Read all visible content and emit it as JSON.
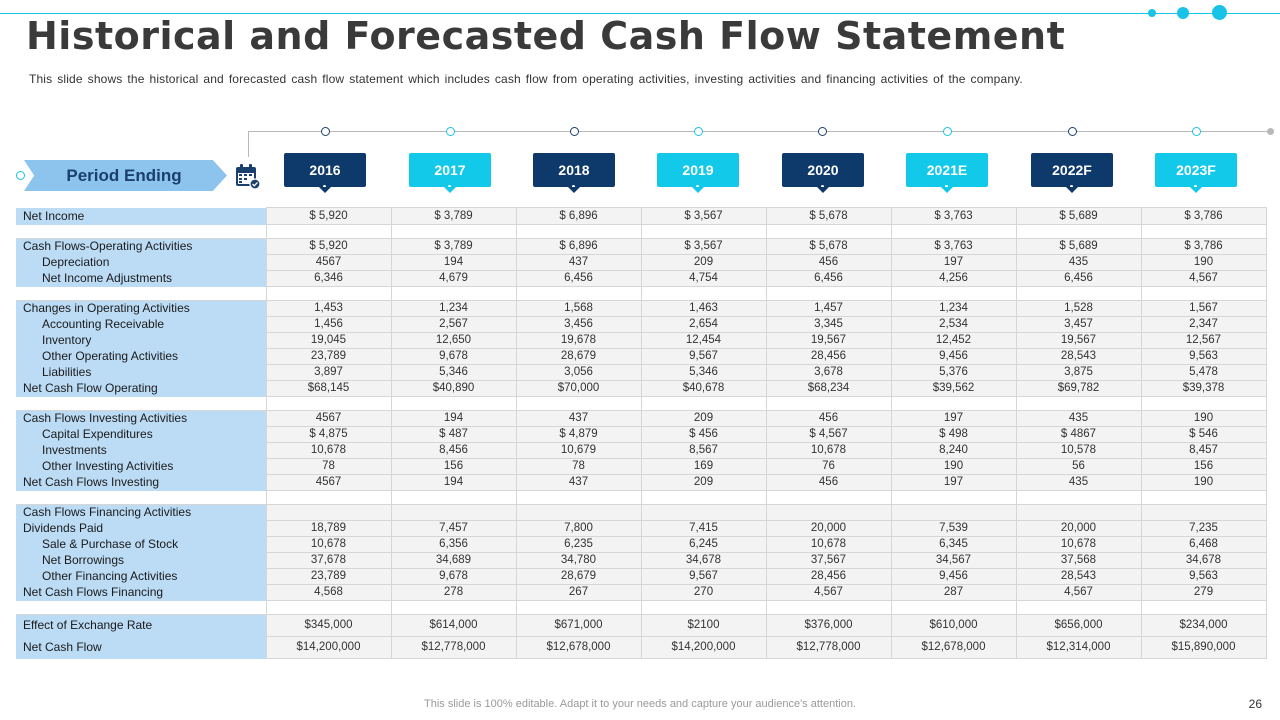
{
  "slide": {
    "title": "Historical and Forecasted Cash Flow Statement",
    "subtitle": "This slide shows the historical and forecasted cash flow statement which includes cash flow from operating activities, investing activities and financing activities of  the company.",
    "period_label": "Period Ending",
    "footer": "This slide is 100% editable. Adapt it to your needs and capture your audience's attention.",
    "page_number": "26"
  },
  "colors": {
    "dark": "#0e3a6b",
    "light": "#13c9ea",
    "label_bg": "#bcdcf6",
    "cell_bg": "#f3f3f3"
  },
  "years": [
    "2016",
    "2017",
    "2018",
    "2019",
    "2020",
    "2021E",
    "2022F",
    "2023F"
  ],
  "rows": [
    {
      "label": "Net Income",
      "values": [
        "$ 5,920",
        "$ 3,789",
        "$ 6,896",
        "$ 3,567",
        "$ 5,678",
        "$ 3,763",
        "$ 5,689",
        "$ 3,786"
      ]
    },
    {
      "label": "Cash Flows-Operating Activities",
      "values": [
        "$ 5,920",
        "$ 3,789",
        "$ 6,896",
        "$ 3,567",
        "$ 5,678",
        "$ 3,763",
        "$ 5,689",
        "$ 3,786"
      ]
    },
    {
      "label": "Depreciation",
      "values": [
        "4567",
        "194",
        "437",
        "209",
        "456",
        "197",
        "435",
        "190"
      ]
    },
    {
      "label": "Net Income Adjustments",
      "values": [
        "6,346",
        "4,679",
        "6,456",
        "4,754",
        "6,456",
        "4,256",
        "6,456",
        "4,567"
      ]
    },
    {
      "label": "Changes in Operating Activities",
      "values": [
        "1,453",
        "1,234",
        "1,568",
        "1,463",
        "1,457",
        "1,234",
        "1,528",
        "1,567"
      ]
    },
    {
      "label": "Accounting Receivable",
      "values": [
        "1,456",
        "2,567",
        "3,456",
        "2,654",
        "3,345",
        "2,534",
        "3,457",
        "2,347"
      ]
    },
    {
      "label": "Inventory",
      "values": [
        "19,045",
        "12,650",
        "19,678",
        "12,454",
        "19,567",
        "12,452",
        "19,567",
        "12,567"
      ]
    },
    {
      "label": "Other Operating Activities",
      "values": [
        "23,789",
        "9,678",
        "28,679",
        "9,567",
        "28,456",
        "9,456",
        "28,543",
        "9,563"
      ]
    },
    {
      "label": "Liabilities",
      "values": [
        "3,897",
        "5,346",
        "3,056",
        "5,346",
        "3,678",
        "5,376",
        "3,875",
        "5,478"
      ]
    },
    {
      "label": "Net Cash Flow Operating",
      "values": [
        "$68,145",
        "$40,890",
        "$70,000",
        "$40,678",
        "$68,234",
        "$39,562",
        "$69,782",
        "$39,378"
      ]
    },
    {
      "label": "Cash Flows Investing  Activities",
      "values": [
        "4567",
        "194",
        "437",
        "209",
        "456",
        "197",
        "435",
        "190"
      ]
    },
    {
      "label": "Capital Expenditures",
      "values": [
        "$ 4,875",
        "$ 487",
        "$ 4,879",
        "$ 456",
        "$ 4,567",
        "$ 498",
        "$ 4867",
        "$ 546"
      ]
    },
    {
      "label": "Investments",
      "values": [
        "10,678",
        "8,456",
        "10,679",
        "8,567",
        "10,678",
        "8,240",
        "10,578",
        "8,457"
      ]
    },
    {
      "label": "Other Investing Activities",
      "values": [
        "78",
        "156",
        "78",
        "169",
        "76",
        "190",
        "56",
        "156"
      ]
    },
    {
      "label": "Net Cash Flows Investing",
      "values": [
        "4567",
        "194",
        "437",
        "209",
        "456",
        "197",
        "435",
        "190"
      ]
    },
    {
      "label": "Cash Flows Financing Activities",
      "values": [
        "",
        "",
        "",
        "",
        "",
        "",
        "",
        ""
      ]
    },
    {
      "label": "Dividends  Paid",
      "values": [
        "18,789",
        "7,457",
        "7,800",
        "7,415",
        "20,000",
        "7,539",
        "20,000",
        "7,235"
      ]
    },
    {
      "label": "Sale & Purchase of Stock",
      "values": [
        "10,678",
        "6,356",
        "6,235",
        "6,245",
        "10,678",
        "6,345",
        "10,678",
        "6,468"
      ]
    },
    {
      "label": "Net Borrowings",
      "values": [
        "37,678",
        "34,689",
        "34,780",
        "34,678",
        "37,567",
        "34,567",
        "37,568",
        "34,678"
      ]
    },
    {
      "label": "Other Financing Activities",
      "values": [
        "23,789",
        "9,678",
        "28,679",
        "9,567",
        "28,456",
        "9,456",
        "28,543",
        "9,563"
      ]
    },
    {
      "label": "Net Cash Flows Financing",
      "values": [
        "4,568",
        "278",
        "267",
        "270",
        "4,567",
        "287",
        "4,567",
        "279"
      ]
    },
    {
      "label": "Effect of Exchange Rate",
      "values": [
        "$345,000",
        "$614,000",
        "$671,000",
        "$2100",
        "$376,000",
        "$610,000",
        "$656,000",
        "$234,000"
      ]
    },
    {
      "label": "Net Cash Flow",
      "values": [
        "$14,200,000",
        "$12,778,000",
        "$12,678,000",
        "$14,200,000",
        "$12,778,000",
        "$12,678,000",
        "$12,314,000",
        "$15,890,000"
      ]
    }
  ]
}
